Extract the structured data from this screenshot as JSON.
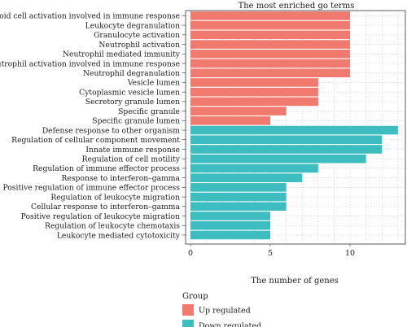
{
  "chart_data": {
    "type": "bar",
    "orientation": "horizontal",
    "title": "The most enriched go terms",
    "xlabel": "The number of genes",
    "ylabel": "",
    "xlim": [
      0,
      13.2
    ],
    "xticks": [
      0,
      5,
      10
    ],
    "grid": true,
    "legend": {
      "title": "Group",
      "placement": "bottom-left",
      "entries": [
        {
          "name": "Up regulated",
          "color": "#F07A70"
        },
        {
          "name": "Down regulated",
          "color": "#3DBDBF"
        }
      ]
    },
    "categories": [
      "Myeloid cell activation involved in immune response",
      "Leukocyte degranulation",
      "Granulocyte activation",
      "Neutrophil activation",
      "Neutrophil mediated immunity",
      "Neutrophil activation involved in immune response",
      "Neutrophil degranulation",
      "Vesicle lumen",
      "Cytoplasmic vesicle lumen",
      "Secretory granule lumen",
      "Specific granule",
      "Specific granule lumen",
      "Defense response to other organism",
      "Regulation of cellular component movement",
      "Innate immune response",
      "Regulation of cell motility",
      "Regulation of immune effector process",
      "Response to interferon–gamma",
      "Positive regulation of immune effector process",
      "Regulation of leukocyte migration",
      "Cellular response to interferon–gamma",
      "Positive regulation of leukocyte migration",
      "Regulation of leukocyte chemotaxis",
      "Leukocyte mediated cytotoxicity"
    ],
    "values": [
      10,
      10,
      10,
      10,
      10,
      10,
      10,
      8,
      8,
      8,
      6,
      5,
      13,
      12,
      12,
      11,
      8,
      7,
      6,
      6,
      6,
      5,
      5,
      5
    ],
    "groups": [
      "Up regulated",
      "Up regulated",
      "Up regulated",
      "Up regulated",
      "Up regulated",
      "Up regulated",
      "Up regulated",
      "Up regulated",
      "Up regulated",
      "Up regulated",
      "Up regulated",
      "Up regulated",
      "Down regulated",
      "Down regulated",
      "Down regulated",
      "Down regulated",
      "Down regulated",
      "Down regulated",
      "Down regulated",
      "Down regulated",
      "Down regulated",
      "Down regulated",
      "Down regulated",
      "Down regulated"
    ]
  }
}
